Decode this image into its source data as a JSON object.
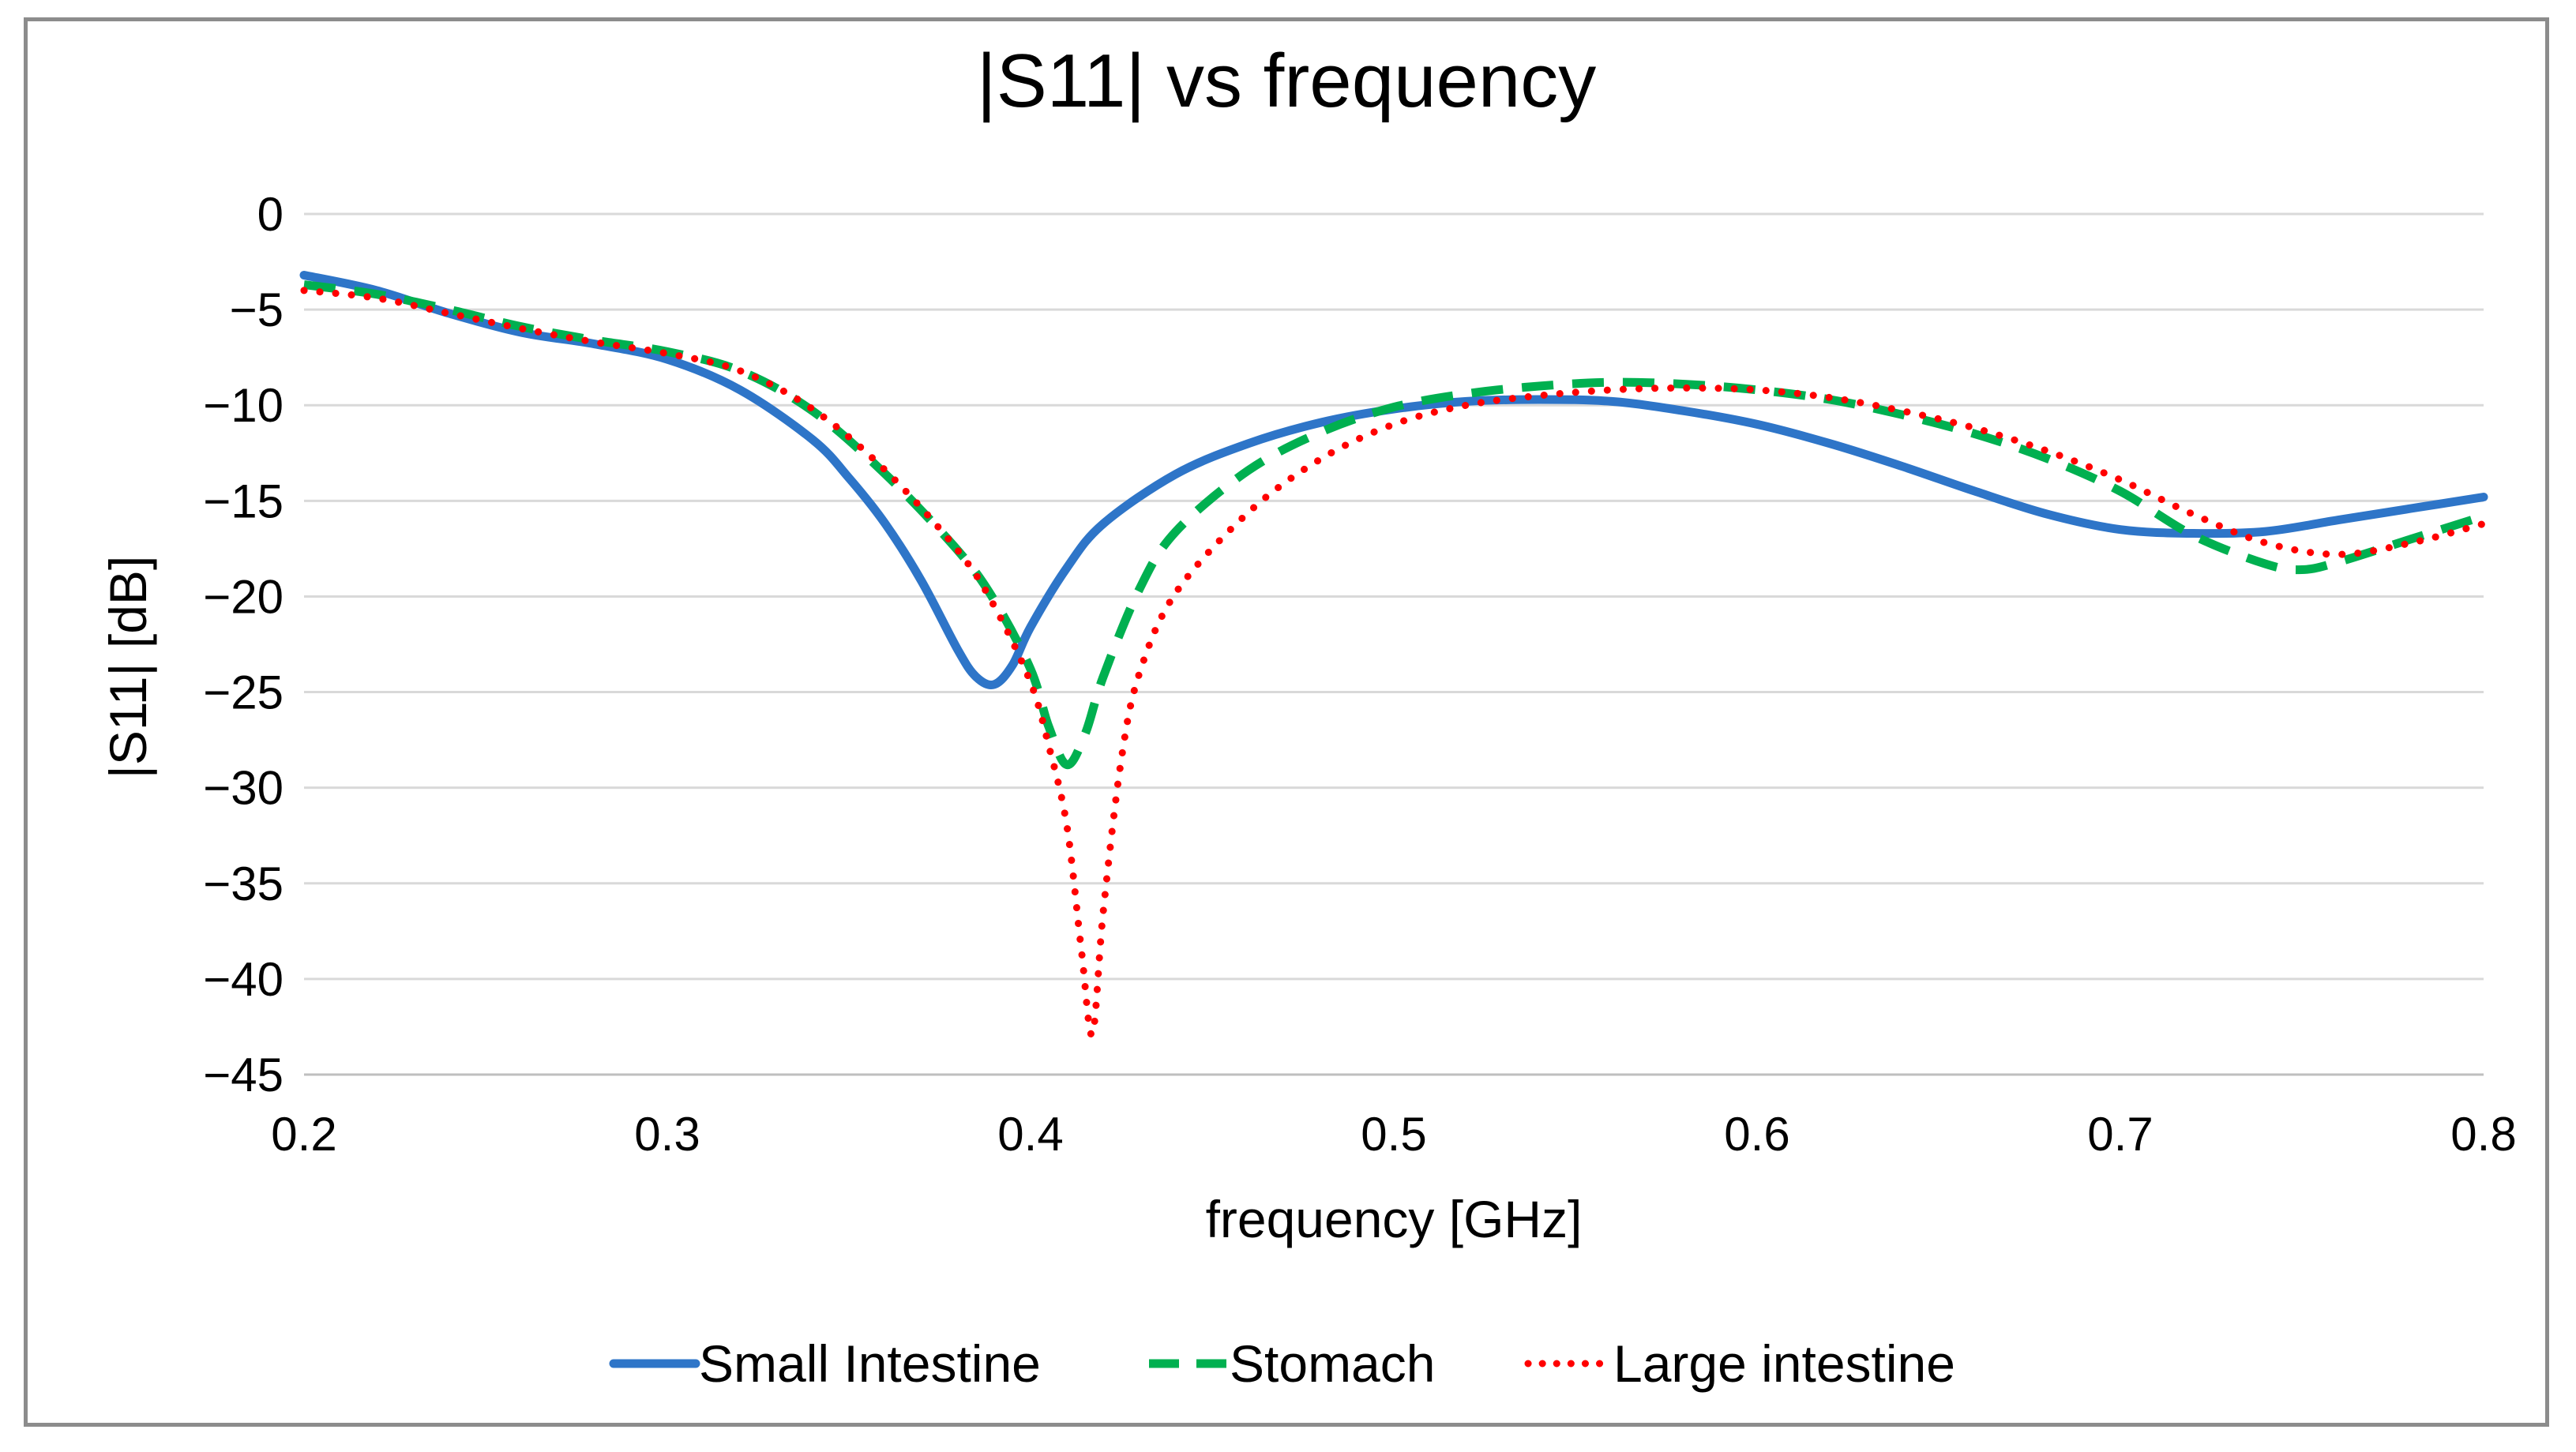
{
  "chart_data": {
    "type": "line",
    "title": "|S11| vs frequency",
    "xlabel": "frequency [GHz]",
    "ylabel": "|S11| [dB]",
    "xlim": [
      0.2,
      0.8
    ],
    "ylim": [
      -45,
      0
    ],
    "xticks": [
      0.2,
      0.3,
      0.4,
      0.5,
      0.6,
      0.7,
      0.8
    ],
    "xtick_labels": [
      "0.2",
      "0.3",
      "0.4",
      "0.5",
      "0.6",
      "0.7",
      "0.8"
    ],
    "yticks": [
      0,
      -5,
      -10,
      -15,
      -20,
      -25,
      -30,
      -35,
      -40,
      -45
    ],
    "ytick_labels": [
      "0",
      "−5",
      "−10",
      "−15",
      "−20",
      "−25",
      "−30",
      "−35",
      "−40",
      "−45"
    ],
    "grid": "horizontal",
    "legend_position": "bottom",
    "series": [
      {
        "name": "Small Intestine",
        "color": "#2e75c8",
        "style": "solid",
        "x": [
          0.2,
          0.22,
          0.24,
          0.26,
          0.28,
          0.3,
          0.32,
          0.34,
          0.35,
          0.36,
          0.37,
          0.38,
          0.385,
          0.39,
          0.395,
          0.4,
          0.41,
          0.42,
          0.44,
          0.46,
          0.48,
          0.5,
          0.52,
          0.54,
          0.56,
          0.58,
          0.6,
          0.62,
          0.64,
          0.66,
          0.68,
          0.7,
          0.72,
          0.74,
          0.76,
          0.78,
          0.8
        ],
        "y": [
          -3.2,
          -4.0,
          -5.2,
          -6.2,
          -6.8,
          -7.6,
          -9.2,
          -11.8,
          -13.8,
          -16.2,
          -19.2,
          -22.8,
          -24.2,
          -24.6,
          -23.6,
          -21.6,
          -18.5,
          -16.2,
          -13.6,
          -12.0,
          -10.9,
          -10.2,
          -9.8,
          -9.7,
          -9.8,
          -10.3,
          -11.0,
          -12.0,
          -13.2,
          -14.5,
          -15.7,
          -16.5,
          -16.7,
          -16.6,
          -16.0,
          -15.4,
          -14.8
        ]
      },
      {
        "name": "Stomach",
        "color": "#00b050",
        "style": "dashed",
        "x": [
          0.2,
          0.22,
          0.24,
          0.26,
          0.28,
          0.3,
          0.32,
          0.34,
          0.36,
          0.38,
          0.39,
          0.4,
          0.405,
          0.41,
          0.415,
          0.42,
          0.43,
          0.44,
          0.46,
          0.48,
          0.5,
          0.52,
          0.54,
          0.56,
          0.58,
          0.6,
          0.62,
          0.64,
          0.66,
          0.68,
          0.7,
          0.72,
          0.74,
          0.75,
          0.76,
          0.78,
          0.8
        ],
        "y": [
          -3.7,
          -4.2,
          -5.0,
          -5.9,
          -6.6,
          -7.2,
          -8.2,
          -10.3,
          -13.6,
          -17.6,
          -20.2,
          -23.8,
          -26.8,
          -28.8,
          -27.2,
          -24.2,
          -19.6,
          -16.6,
          -13.4,
          -11.4,
          -10.1,
          -9.4,
          -9.0,
          -8.8,
          -8.9,
          -9.2,
          -9.7,
          -10.5,
          -11.5,
          -12.8,
          -14.5,
          -16.8,
          -18.3,
          -18.6,
          -18.2,
          -17.0,
          -15.8
        ]
      },
      {
        "name": "Large intestine",
        "color": "#ff0000",
        "style": "dotted",
        "x": [
          0.2,
          0.22,
          0.24,
          0.26,
          0.28,
          0.3,
          0.32,
          0.34,
          0.36,
          0.38,
          0.39,
          0.4,
          0.405,
          0.41,
          0.414,
          0.417,
          0.42,
          0.425,
          0.43,
          0.44,
          0.46,
          0.48,
          0.5,
          0.52,
          0.54,
          0.56,
          0.58,
          0.6,
          0.62,
          0.64,
          0.66,
          0.68,
          0.7,
          0.72,
          0.74,
          0.76,
          0.78,
          0.8
        ],
        "y": [
          -4.0,
          -4.4,
          -5.2,
          -6.0,
          -6.7,
          -7.3,
          -8.2,
          -10.2,
          -13.4,
          -17.6,
          -20.5,
          -24.5,
          -27.8,
          -32.0,
          -38.5,
          -42.9,
          -36.5,
          -28.5,
          -24.0,
          -19.8,
          -15.6,
          -12.8,
          -11.0,
          -10.0,
          -9.5,
          -9.2,
          -9.1,
          -9.2,
          -9.6,
          -10.3,
          -11.2,
          -12.4,
          -13.9,
          -15.7,
          -17.2,
          -17.8,
          -17.2,
          -16.2
        ]
      }
    ]
  }
}
